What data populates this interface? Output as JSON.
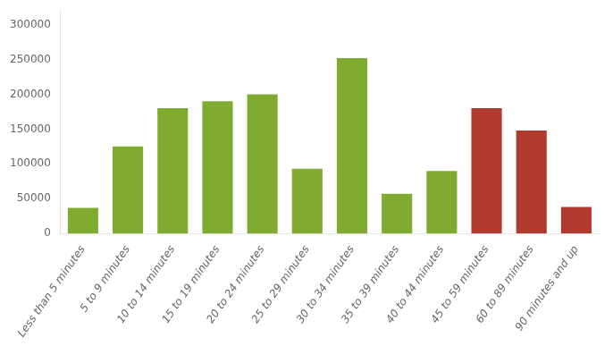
{
  "chart_data": {
    "type": "bar",
    "categories": [
      "Less than 5 minutes",
      "5 to 9 minutes",
      "10 to 14 minutes",
      "15 to 19 minutes",
      "20 to 24 minutes",
      "25 to 29 minutes",
      "30 to 34 minutes",
      "35 to 39 minutes",
      "40 to 44 minutes",
      "45 to 59 minutes",
      "60 to 89 minutes",
      "90 minutes and up"
    ],
    "values": [
      37000,
      125000,
      180000,
      190000,
      200000,
      93000,
      252000,
      57000,
      90000,
      180000,
      148000,
      38000
    ],
    "colors": [
      "#7fac30",
      "#7fac30",
      "#7fac30",
      "#7fac30",
      "#7fac30",
      "#7fac30",
      "#7fac30",
      "#7fac30",
      "#7fac30",
      "#b03a2e",
      "#b03a2e",
      "#b03a2e"
    ],
    "ylim": [
      0,
      320000
    ],
    "yticks": [
      0,
      50000,
      100000,
      150000,
      200000,
      250000,
      300000
    ],
    "grid": false
  }
}
